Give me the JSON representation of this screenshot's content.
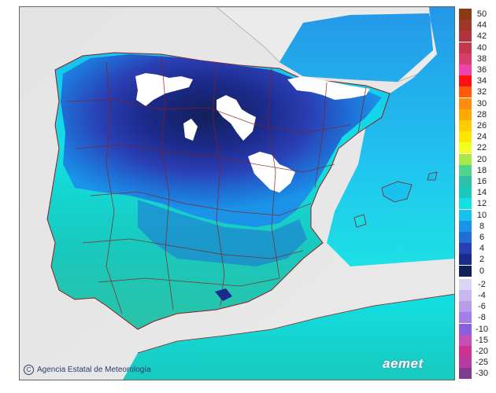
{
  "credit": "Agencia Estatal de Meteorología",
  "logo_text": "aemet",
  "icons": {
    "credit": "copyright-circle-icon",
    "logo": "aemet-logo"
  },
  "colors": {
    "sea": "#e8e8e8",
    "land_outside": "#ebebeb",
    "borders": "#8a1e1e"
  },
  "legend_positive": [
    {
      "label": "50",
      "color": "#8b3a14"
    },
    {
      "label": "44",
      "color": "#a1352c"
    },
    {
      "label": "42",
      "color": "#b1343c"
    },
    {
      "label": "40",
      "color": "#c3384e"
    },
    {
      "label": "38",
      "color": "#d63f6c"
    },
    {
      "label": "36",
      "color": "#ee43a8"
    },
    {
      "label": "34",
      "color": "#ff1010"
    },
    {
      "label": "32",
      "color": "#ff5a0a"
    },
    {
      "label": "30",
      "color": "#ff8c0c"
    },
    {
      "label": "28",
      "color": "#ffaa00"
    },
    {
      "label": "26",
      "color": "#ffcc00"
    },
    {
      "label": "24",
      "color": "#ffe600"
    },
    {
      "label": "22",
      "color": "#f2ff1c"
    },
    {
      "label": "20",
      "color": "#a8e84a"
    },
    {
      "label": "18",
      "color": "#4ed48c"
    },
    {
      "label": "16",
      "color": "#2bc2a8"
    },
    {
      "label": "14",
      "color": "#18c9bd"
    },
    {
      "label": "12",
      "color": "#12e0e4"
    },
    {
      "label": "10",
      "color": "#16c2f0"
    },
    {
      "label": "8",
      "color": "#1a93e8"
    },
    {
      "label": "6",
      "color": "#1f6fd6"
    },
    {
      "label": "4",
      "color": "#2a3fb4"
    },
    {
      "label": "2",
      "color": "#1c2a8c"
    },
    {
      "label": "0",
      "color": "#10205a"
    }
  ],
  "legend_negative": [
    {
      "label": "-2",
      "color": "#ddd4f3"
    },
    {
      "label": "-4",
      "color": "#c9b8ee"
    },
    {
      "label": "-6",
      "color": "#b79cea"
    },
    {
      "label": "-8",
      "color": "#a27ee6"
    },
    {
      "label": "-10",
      "color": "#8b5ee0"
    },
    {
      "label": "-15",
      "color": "#c34fb8"
    },
    {
      "label": "-20",
      "color": "#d0308f"
    },
    {
      "label": "-25",
      "color": "#b73aa0"
    },
    {
      "label": "-30",
      "color": "#7d3c92"
    }
  ]
}
